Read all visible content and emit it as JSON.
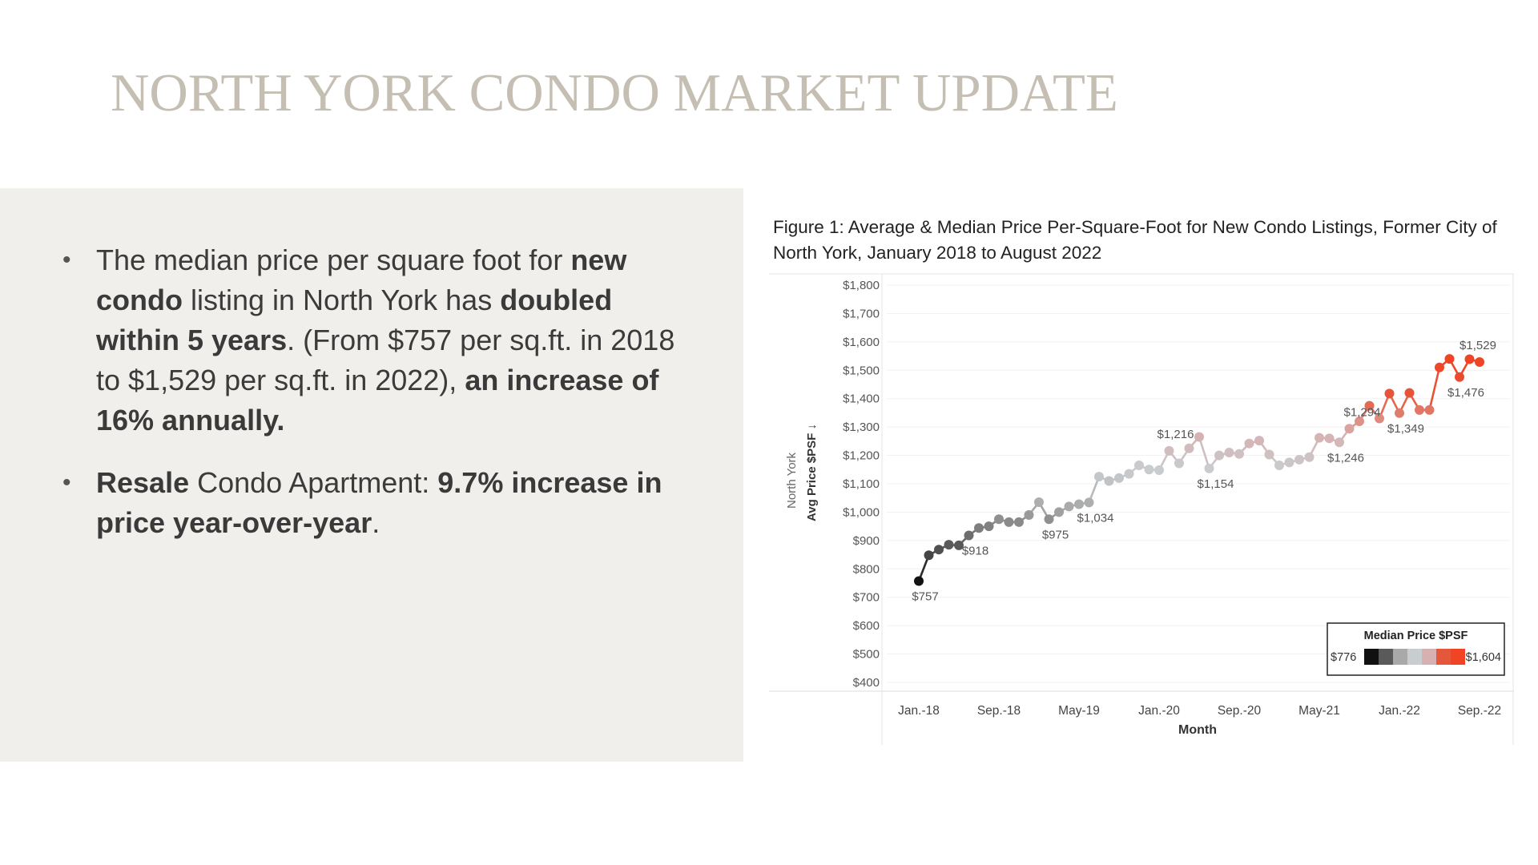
{
  "slide": {
    "title": "NORTH YORK CONDO MARKET UPDATE"
  },
  "bullets": [
    {
      "parts": [
        {
          "t": "The median price per square foot for ",
          "b": false
        },
        {
          "t": "new condo",
          "b": true
        },
        {
          "t": " listing in North York has ",
          "b": false
        },
        {
          "t": "doubled within 5 years",
          "b": true
        },
        {
          "t": ".  (From $757 per sq.ft. in 2018 to $1,529 per sq.ft. in 2022), ",
          "b": false
        },
        {
          "t": "an increase of 16% annually.",
          "b": true
        }
      ]
    },
    {
      "parts": [
        {
          "t": "Resale",
          "b": true
        },
        {
          "t": " Condo Apartment: ",
          "b": false
        },
        {
          "t": "9.7% increase in price year-over-year",
          "b": true
        },
        {
          "t": ".",
          "b": false
        }
      ]
    }
  ],
  "chart_data": {
    "type": "line",
    "title": "Figure 1: Average  & Median Price Per-Square-Foot for New Condo Listings, Former City of North York, January 2018 to August 2022",
    "xlabel": "Month",
    "ylabel": "Avg Price $PSF",
    "ylabel_sort_mark": "↓",
    "row_label": "North York",
    "ylim": [
      400,
      1800
    ],
    "yticks": [
      {
        "v": 400,
        "label": "$400"
      },
      {
        "v": 500,
        "label": "$500"
      },
      {
        "v": 600,
        "label": "$600"
      },
      {
        "v": 700,
        "label": "$700"
      },
      {
        "v": 800,
        "label": "$800"
      },
      {
        "v": 900,
        "label": "$900"
      },
      {
        "v": 1000,
        "label": "$1,000"
      },
      {
        "v": 1100,
        "label": "$1,100"
      },
      {
        "v": 1200,
        "label": "$1,200"
      },
      {
        "v": 1300,
        "label": "$1,300"
      },
      {
        "v": 1400,
        "label": "$1,400"
      },
      {
        "v": 1500,
        "label": "$1,500"
      },
      {
        "v": 1600,
        "label": "$1,600"
      },
      {
        "v": 1700,
        "label": "$1,700"
      },
      {
        "v": 1800,
        "label": "$1,800"
      }
    ],
    "xticks": [
      {
        "i": 0,
        "label": "Jan.-18"
      },
      {
        "i": 8,
        "label": "Sep.-18"
      },
      {
        "i": 16,
        "label": "May-19"
      },
      {
        "i": 24,
        "label": "Jan.-20"
      },
      {
        "i": 32,
        "label": "Sep.-20"
      },
      {
        "i": 40,
        "label": "May-21"
      },
      {
        "i": 48,
        "label": "Jan.-22"
      },
      {
        "i": 56,
        "label": "Sep.-22"
      }
    ],
    "x_count": 57,
    "series": [
      {
        "values": [
          757,
          848,
          868,
          885,
          883,
          918,
          944,
          950,
          975,
          965,
          965,
          990,
          1035,
          975,
          1000,
          1020,
          1028,
          1034,
          1125,
          1110,
          1120,
          1135,
          1165,
          1150,
          1148,
          1216,
          1172,
          1225,
          1265,
          1154,
          1200,
          1210,
          1205,
          1242,
          1252,
          1203,
          1165,
          1175,
          1185,
          1194,
          1262,
          1260,
          1246,
          1294,
          1320,
          1375,
          1330,
          1418,
          1349,
          1420,
          1360,
          1360,
          1510,
          1540,
          1476,
          1539,
          1529
        ]
      }
    ],
    "median_range": [
      776,
      1604
    ],
    "color_stops": [
      "#111111",
      "#5a5a5a",
      "#a9a9a9",
      "#c8cdd0",
      "#d7b1b1",
      "#e5573a",
      "#f04424"
    ],
    "data_labels": [
      {
        "i": 0,
        "label": "$757",
        "pos": "below"
      },
      {
        "i": 5,
        "label": "$918",
        "pos": "below"
      },
      {
        "i": 13,
        "label": "$975",
        "pos": "below"
      },
      {
        "i": 17,
        "label": "$1,034",
        "pos": "below"
      },
      {
        "i": 25,
        "label": "$1,216",
        "pos": "above"
      },
      {
        "i": 29,
        "label": "$1,154",
        "pos": "below"
      },
      {
        "i": 42,
        "label": "$1,246",
        "pos": "below"
      },
      {
        "i": 43,
        "label": "$1,294",
        "pos": "above"
      },
      {
        "i": 48,
        "label": "$1,349",
        "pos": "below"
      },
      {
        "i": 54,
        "label": "$1,476",
        "pos": "below"
      },
      {
        "i": 56,
        "label": "$1,529",
        "pos": "above"
      }
    ],
    "legend": {
      "title": "Median Price $PSF",
      "min_label": "$776",
      "max_label": "$1,604",
      "position": "bottom-right"
    }
  }
}
